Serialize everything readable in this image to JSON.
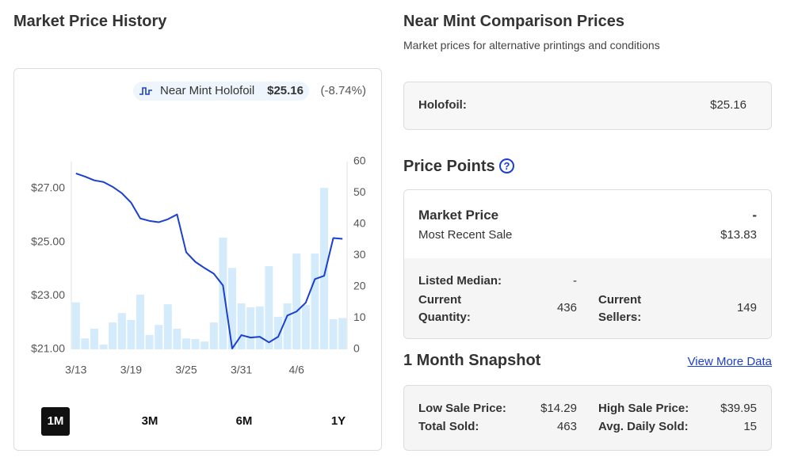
{
  "left": {
    "title": "Market Price History",
    "ranges": [
      "1M",
      "3M",
      "6M",
      "1Y"
    ],
    "active_range": 0
  },
  "chart_data": {
    "type": "combo",
    "legend_price": "$25.16",
    "legend_change": "(-8.74%)",
    "legend_change_color": "#c8102e",
    "categories": [
      "3/13",
      null,
      null,
      null,
      null,
      null,
      "3/19",
      null,
      null,
      null,
      null,
      null,
      "3/25",
      null,
      null,
      null,
      null,
      null,
      "3/31",
      null,
      null,
      null,
      null,
      null,
      "4/6",
      null,
      null,
      null,
      null,
      null
    ],
    "series": [
      {
        "name": "Near Mint Holofoil",
        "kind": "line",
        "color": "#1a3fd1",
        "values": [
          27.56,
          27.44,
          27.3,
          27.24,
          27.06,
          26.82,
          26.47,
          25.88,
          25.79,
          25.74,
          25.85,
          26.03,
          24.62,
          24.26,
          24.03,
          23.82,
          23.38,
          21.03,
          21.53,
          21.44,
          21.47,
          21.26,
          21.47,
          22.26,
          22.41,
          22.74,
          23.62,
          23.74,
          25.15,
          25.12
        ]
      },
      {
        "kind": "bar",
        "axis": "y2",
        "color": "#d3ebfb",
        "values": [
          15,
          3.5,
          6.6,
          1.5,
          8.6,
          11.6,
          9.4,
          17.5,
          4.6,
          7.8,
          14.4,
          6.6,
          3.5,
          3.3,
          2.5,
          8.6,
          35.7,
          26,
          14.7,
          13.4,
          13.7,
          26.6,
          10.4,
          14.7,
          30.6,
          14.2,
          30.6,
          51.6,
          9.6,
          10
        ]
      }
    ],
    "ylim": [
      21,
      28
    ],
    "yticks": [
      {
        "value": 21,
        "label": "$21.00"
      },
      {
        "value": 23,
        "label": "$23.00"
      },
      {
        "value": 25,
        "label": "$25.00"
      },
      {
        "value": 27,
        "label": "$27.00"
      }
    ],
    "y2lim": [
      0,
      60
    ],
    "y2ticks": [
      0,
      10,
      20,
      30,
      40,
      50,
      60
    ],
    "grid": false
  },
  "right": {
    "comparison": {
      "title": "Near Mint Comparison Prices",
      "subtitle": "Market prices for alternative printings and conditions",
      "label": "Holofoil:",
      "value": "$25.16"
    },
    "price_points": {
      "title": "Price Points",
      "help": "?",
      "market_label": "Market Price",
      "market_value": "-",
      "recent_label": "Most Recent Sale",
      "recent_value": "$13.83",
      "median_label": "Listed Median:",
      "median_value": "-",
      "quantity_label": "Current Quantity:",
      "quantity_value": "436",
      "sellers_label": "Current Sellers:",
      "sellers_value": "149"
    },
    "snapshot": {
      "title": "1 Month Snapshot",
      "link": "View More Data",
      "low_label": "Low Sale Price:",
      "low_value": "$14.29",
      "high_label": "High Sale Price:",
      "high_value": "$39.95",
      "total_label": "Total Sold:",
      "total_value": "463",
      "avg_label": "Avg. Daily Sold:",
      "avg_value": "15"
    }
  }
}
